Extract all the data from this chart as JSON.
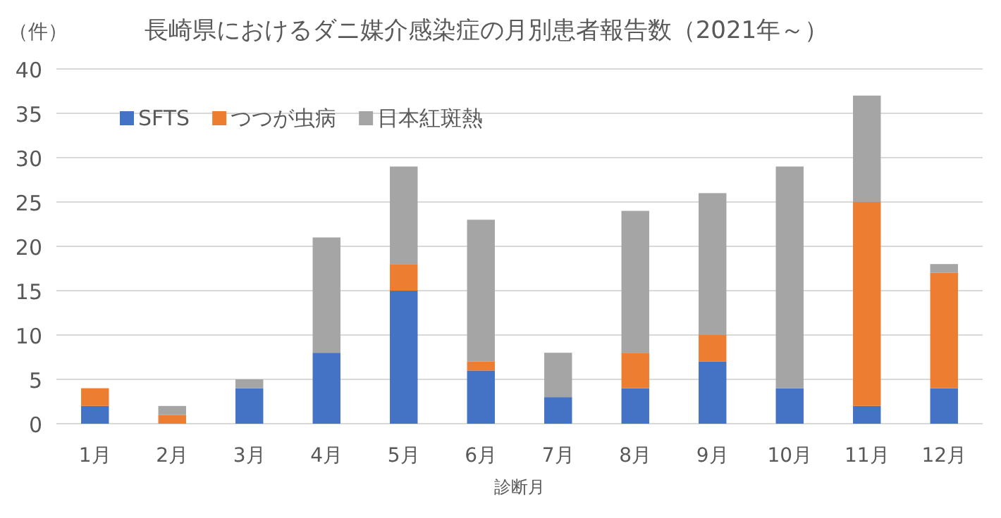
{
  "chart_data": {
    "type": "bar",
    "title": "長崎県におけるダニ媒介感染症の月別患者報告数（2021年～）",
    "xlabel": "診断月",
    "ylabel": "（件）",
    "categories": [
      "1月",
      "2月",
      "3月",
      "4月",
      "5月",
      "6月",
      "7月",
      "8月",
      "9月",
      "10月",
      "11月",
      "12月"
    ],
    "stacked": true,
    "grid": "y",
    "legend": "top left",
    "ylim": [
      0,
      40
    ],
    "yticks": [
      0,
      5,
      10,
      15,
      20,
      25,
      30,
      35,
      40
    ],
    "series": [
      {
        "name": "SFTS",
        "color": "#4472c4",
        "values": [
          2,
          0,
          4,
          8,
          15,
          6,
          3,
          4,
          7,
          4,
          2,
          4
        ]
      },
      {
        "name": "つつが虫病",
        "color": "#ed7d31",
        "values": [
          2,
          1,
          0,
          0,
          3,
          1,
          0,
          4,
          3,
          0,
          23,
          13
        ]
      },
      {
        "name": "日本紅斑熱",
        "color": "#a5a5a5",
        "values": [
          0,
          1,
          1,
          13,
          11,
          16,
          5,
          16,
          16,
          25,
          12,
          1
        ]
      }
    ]
  }
}
